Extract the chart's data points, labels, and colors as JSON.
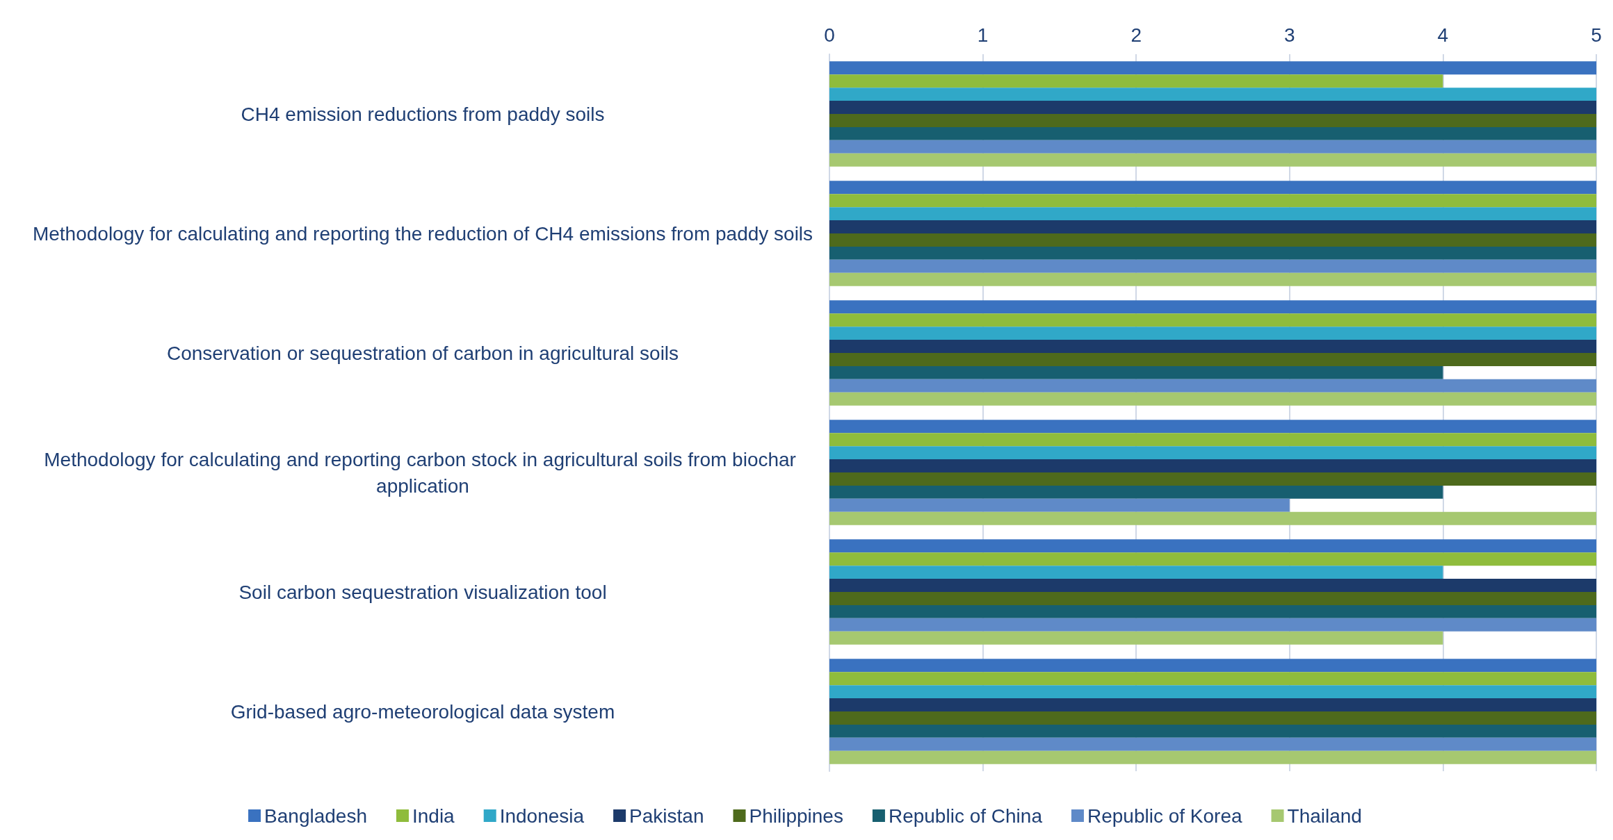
{
  "chart_data": {
    "type": "bar",
    "orientation": "horizontal",
    "categories": [
      "CH4 emission reductions from paddy soils",
      "Methodology for calculating and reporting the reduction of CH4 emissions from paddy soils",
      "Conservation or sequestration of carbon in agricultural soils",
      "Methodology for calculating and reporting carbon stock in agricultural soils from biochar application",
      "Soil carbon sequestration visualization tool",
      "Grid-based agro-meteorological data system"
    ],
    "series": [
      {
        "name": "Bangladesh",
        "color": "#3a72c0",
        "values": [
          5,
          5,
          5,
          5,
          5,
          5
        ]
      },
      {
        "name": "India",
        "color": "#8fbc3c",
        "values": [
          4,
          5,
          5,
          5,
          5,
          5
        ]
      },
      {
        "name": "Indonesia",
        "color": "#30a8c8",
        "values": [
          5,
          5,
          5,
          5,
          4,
          5
        ]
      },
      {
        "name": "Pakistan",
        "color": "#1c3a6a",
        "values": [
          5,
          5,
          5,
          5,
          5,
          5
        ]
      },
      {
        "name": "Philippines",
        "color": "#4e6a1c",
        "values": [
          5,
          5,
          5,
          5,
          5,
          5
        ]
      },
      {
        "name": "Republic of China",
        "color": "#175f70",
        "values": [
          5,
          5,
          4,
          4,
          5,
          5
        ]
      },
      {
        "name": "Republic of Korea",
        "color": "#5f8ac8",
        "values": [
          5,
          5,
          5,
          3,
          5,
          5
        ]
      },
      {
        "name": "Thailand",
        "color": "#a6c870",
        "values": [
          5,
          5,
          5,
          5,
          4,
          5
        ]
      }
    ],
    "xlim": [
      0,
      5
    ],
    "xticks": [
      0,
      1,
      2,
      3,
      4,
      5
    ],
    "grid": "x",
    "legend": "bottom"
  }
}
